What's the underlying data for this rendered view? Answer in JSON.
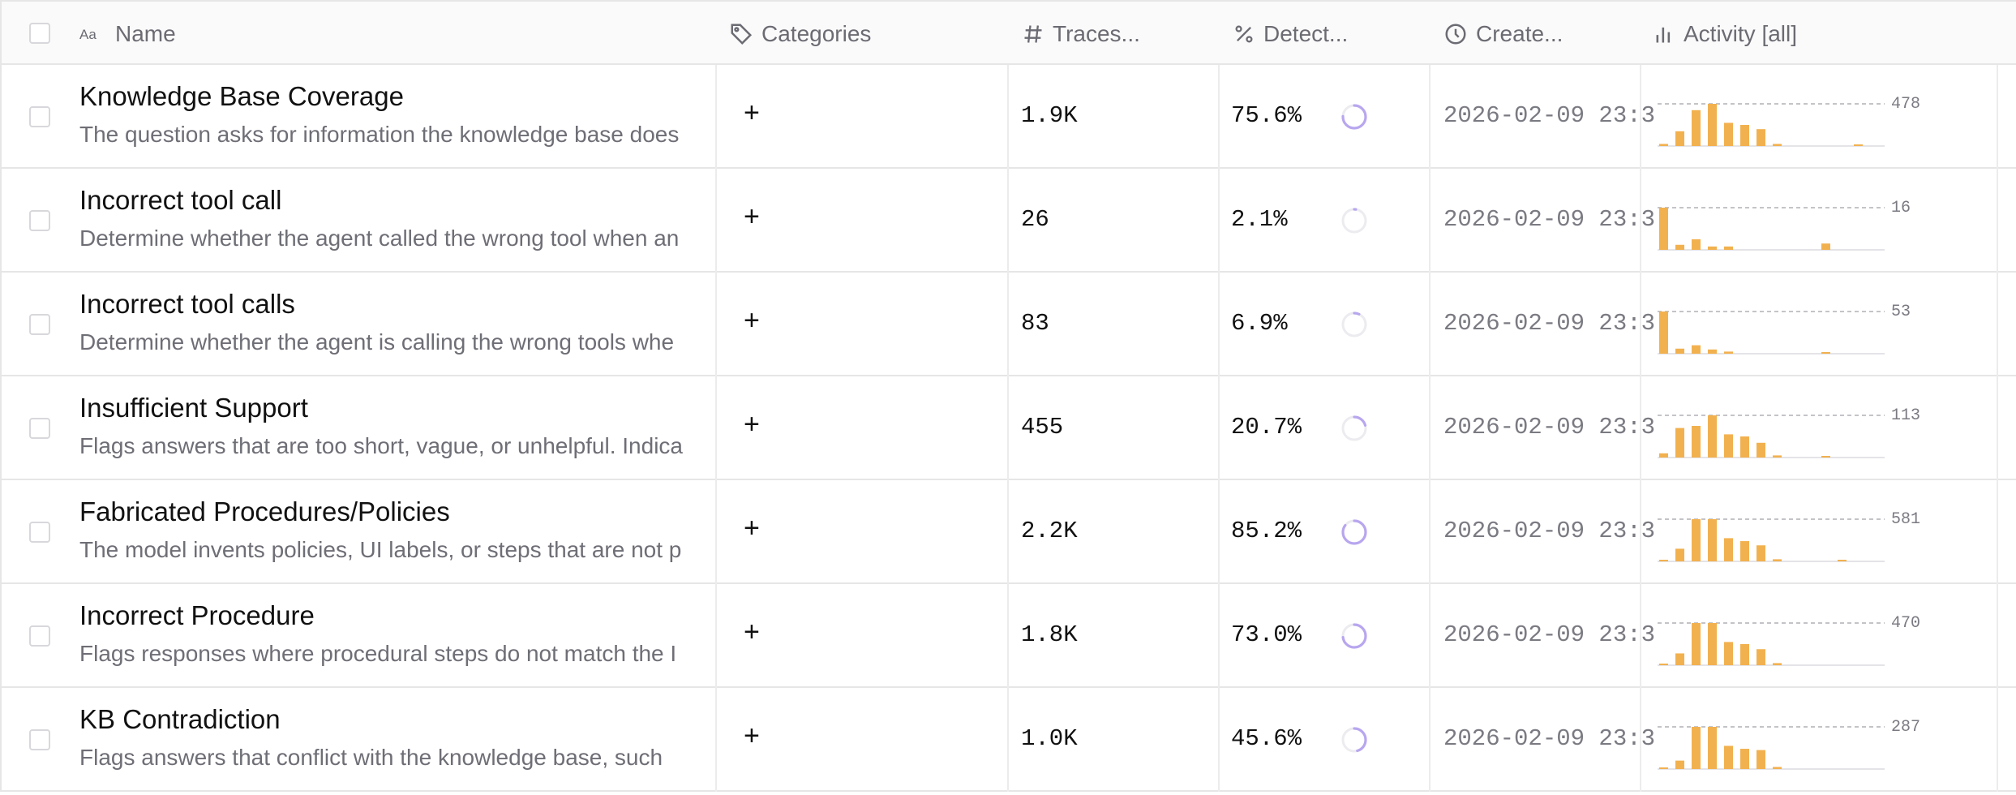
{
  "header": {
    "name": "Name",
    "categories": "Categories",
    "traces": "Traces...",
    "detect": "Detect...",
    "created": "Create...",
    "activity": "Activity [all]"
  },
  "colors": {
    "bar": "#f2b14f",
    "ring": "#b8a6ef",
    "ring_track": "#ececf0"
  },
  "rows": [
    {
      "title": "Knowledge Base Coverage",
      "desc": "The question asks for information the knowledge base does",
      "plus": "+",
      "traces": "1.9K",
      "detect": "75.6%",
      "detect_value": 75.6,
      "created": "2026-02-09 23:3",
      "activity_max": "478",
      "activity": [
        0.05,
        0.35,
        0.85,
        1.0,
        0.55,
        0.5,
        0.4,
        0.05,
        0,
        0,
        0,
        0,
        0.02,
        0
      ]
    },
    {
      "title": "Incorrect tool call",
      "desc": "Determine whether the agent called the wrong tool when an",
      "plus": "+",
      "traces": "26",
      "detect": "2.1%",
      "detect_value": 2.1,
      "created": "2026-02-09 23:3",
      "activity_max": "16",
      "activity": [
        1.0,
        0.12,
        0.25,
        0.08,
        0.08,
        0,
        0,
        0,
        0,
        0,
        0.15,
        0,
        0,
        0
      ]
    },
    {
      "title": "Incorrect tool calls",
      "desc": "Determine whether the agent is calling the wrong tools whe",
      "plus": "+",
      "traces": "83",
      "detect": "6.9%",
      "detect_value": 6.9,
      "created": "2026-02-09 23:3",
      "activity_max": "53",
      "activity": [
        1.0,
        0.12,
        0.2,
        0.1,
        0.05,
        0,
        0,
        0,
        0,
        0,
        0.03,
        0,
        0,
        0
      ]
    },
    {
      "title": "Insufficient Support",
      "desc": "Flags answers that are too short, vague, or unhelpful. Indica",
      "plus": "+",
      "traces": "455",
      "detect": "20.7%",
      "detect_value": 20.7,
      "created": "2026-02-09 23:3",
      "activity_max": "113",
      "activity": [
        0.1,
        0.7,
        0.75,
        1.0,
        0.55,
        0.5,
        0.35,
        0.05,
        0,
        0,
        0.02,
        0,
        0,
        0
      ]
    },
    {
      "title": "Fabricated Procedures/Policies",
      "desc": "The model invents policies, UI labels, or steps that are not p",
      "plus": "+",
      "traces": "2.2K",
      "detect": "85.2%",
      "detect_value": 85.2,
      "created": "2026-02-09 23:3",
      "activity_max": "581",
      "activity": [
        0.03,
        0.3,
        1.0,
        1.0,
        0.55,
        0.48,
        0.38,
        0.05,
        0,
        0,
        0,
        0.02,
        0,
        0
      ]
    },
    {
      "title": "Incorrect Procedure",
      "desc": "Flags responses where procedural steps do not match the I",
      "plus": "+",
      "traces": "1.8K",
      "detect": "73.0%",
      "detect_value": 73.0,
      "created": "2026-02-09 23:3",
      "activity_max": "470",
      "activity": [
        0.03,
        0.28,
        1.0,
        1.0,
        0.55,
        0.5,
        0.38,
        0.05,
        0,
        0,
        0,
        0,
        0,
        0
      ]
    },
    {
      "title": "KB Contradiction",
      "desc": "Flags answers that conflict with the knowledge base, such",
      "plus": "+",
      "traces": "1.0K",
      "detect": "45.6%",
      "detect_value": 45.6,
      "created": "2026-02-09 23:3",
      "activity_max": "287",
      "activity": [
        0.03,
        0.2,
        1.0,
        1.0,
        0.55,
        0.48,
        0.45,
        0.05,
        0,
        0,
        0,
        0,
        0,
        0
      ]
    }
  ]
}
